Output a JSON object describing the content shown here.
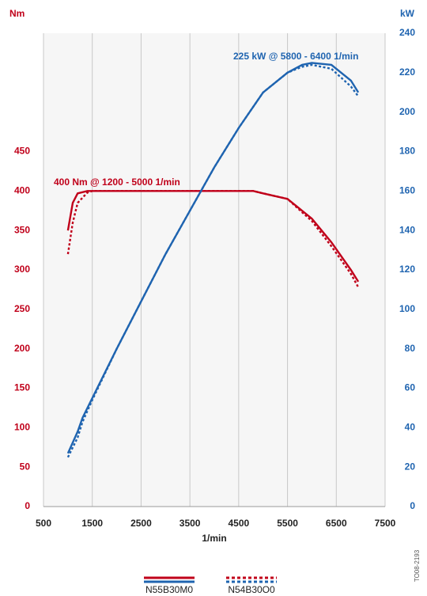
{
  "chart_data": {
    "type": "line",
    "y_label": "Nm",
    "y2_label": "kW",
    "x_label": "1/min",
    "annotations": [
      {
        "text": "400 Nm @ 1200 - 5000 1/min",
        "color": "#c0001a"
      },
      {
        "text": "225 kW @ 5800 - 6400 1/min",
        "color": "#1f64b0"
      }
    ],
    "figure_id": "TO08-2193",
    "xlim": [
      500,
      7500
    ],
    "xticks": [
      500,
      1500,
      2500,
      3500,
      4500,
      5500,
      6500,
      7500
    ],
    "ylim": [
      0,
      600
    ],
    "yticks": [
      0,
      50,
      100,
      150,
      200,
      250,
      300,
      350,
      400,
      450
    ],
    "y2lim": [
      0,
      240
    ],
    "y2ticks": [
      0,
      20,
      40,
      60,
      80,
      100,
      120,
      140,
      160,
      180,
      200,
      220,
      240
    ],
    "grid": true,
    "legend": [
      {
        "label": "N55B30M0",
        "dashed": false
      },
      {
        "label": "N54B30O0",
        "dashed": true
      }
    ],
    "series": [
      {
        "color": "#c0001a",
        "dashed": false,
        "axis": "y",
        "x": [
          1000,
          1100,
          1200,
          1400,
          2000,
          3000,
          4000,
          4800,
          5000,
          5500,
          5800,
          6000,
          6400,
          6800,
          6950
        ],
        "values": [
          350,
          385,
          397,
          400,
          400,
          400,
          400,
          400,
          397,
          390,
          375,
          365,
          335,
          300,
          285
        ]
      },
      {
        "color": "#c0001a",
        "dashed": true,
        "axis": "y",
        "x": [
          1000,
          1100,
          1200,
          1400,
          1500,
          2000,
          3000,
          4000,
          4800,
          5000,
          5500,
          5800,
          6000,
          6400,
          6800,
          6950
        ],
        "values": [
          320,
          360,
          385,
          398,
          400,
          400,
          400,
          400,
          400,
          397,
          390,
          373,
          362,
          330,
          295,
          278
        ]
      },
      {
        "color": "#1f64b0",
        "dashed": false,
        "axis": "y2",
        "x": [
          1000,
          1200,
          1300,
          1500,
          2000,
          2500,
          3000,
          3500,
          4000,
          4500,
          5000,
          5500,
          5800,
          6000,
          6400,
          6800,
          6950
        ],
        "values": [
          27,
          38,
          45,
          55,
          80,
          104,
          128,
          150,
          172,
          192,
          210,
          220,
          224,
          225,
          224,
          216,
          210
        ]
      },
      {
        "color": "#1f64b0",
        "dashed": true,
        "axis": "y2",
        "x": [
          1000,
          1200,
          1300,
          1500,
          2000,
          2500,
          3000,
          3500,
          4000,
          4500,
          5000,
          5500,
          5800,
          6000,
          6400,
          6800,
          6950
        ],
        "values": [
          25,
          35,
          43,
          54,
          80,
          104,
          128,
          150,
          172,
          192,
          210,
          220,
          223,
          224,
          222,
          213,
          208
        ]
      }
    ]
  }
}
